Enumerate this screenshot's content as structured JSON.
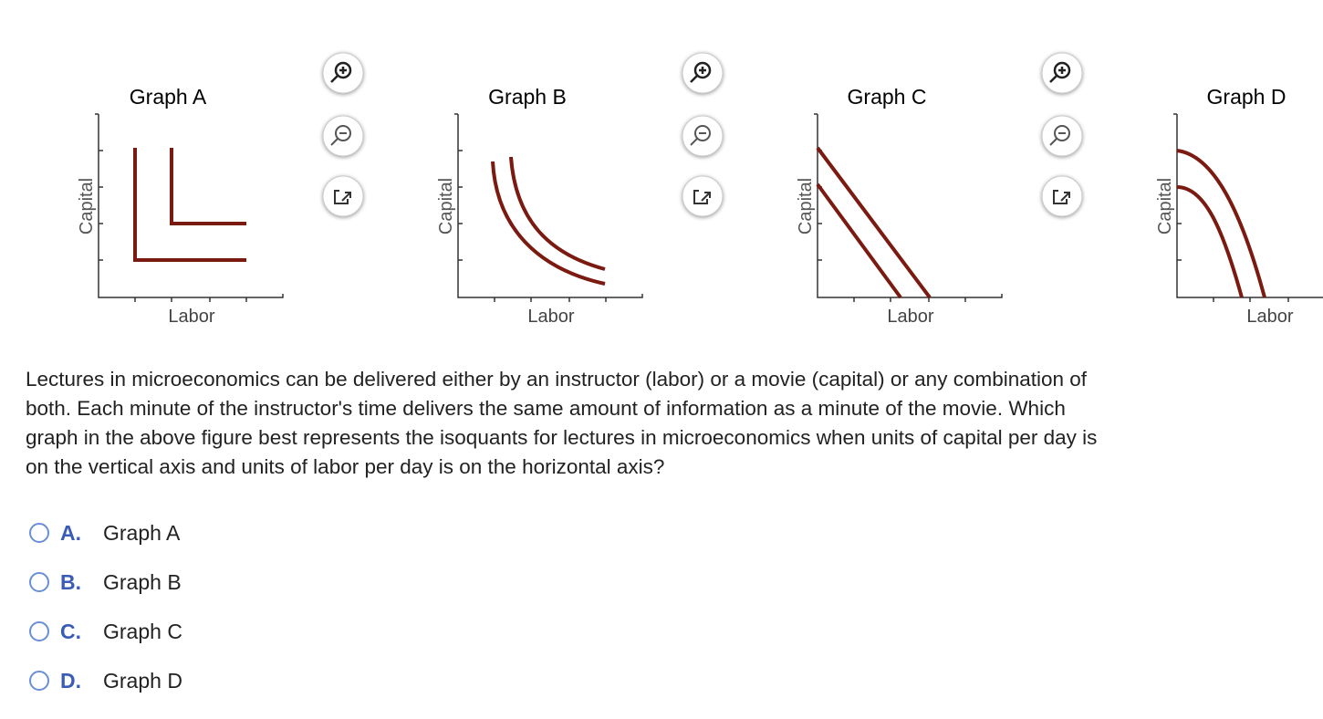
{
  "graphs": [
    {
      "title": "Graph A",
      "y_label": "Capital",
      "x_label": "Labor"
    },
    {
      "title": "Graph B",
      "y_label": "Capital",
      "x_label": "Labor"
    },
    {
      "title": "Graph C",
      "y_label": "Capital",
      "x_label": "Labor"
    },
    {
      "title": "Graph D",
      "y_label": "Capital",
      "x_label": "Labor"
    }
  ],
  "question": {
    "lines": [
      "Lectures in microeconomics can be delivered either by an instructor (labor) or a movie (capital) or any combination of",
      "both. Each minute of the instructor's time delivers the same amount of information as a minute of the movie. Which",
      "graph in the above figure best represents the isoquants for lectures in microeconomics when units of capital per day is",
      "on the vertical axis and units of labor per day is on the horizontal axis?"
    ]
  },
  "options": [
    {
      "letter": "A.",
      "text": "Graph A"
    },
    {
      "letter": "B.",
      "text": "Graph B"
    },
    {
      "letter": "C.",
      "text": "Graph C"
    },
    {
      "letter": "D.",
      "text": "Graph D"
    }
  ]
}
